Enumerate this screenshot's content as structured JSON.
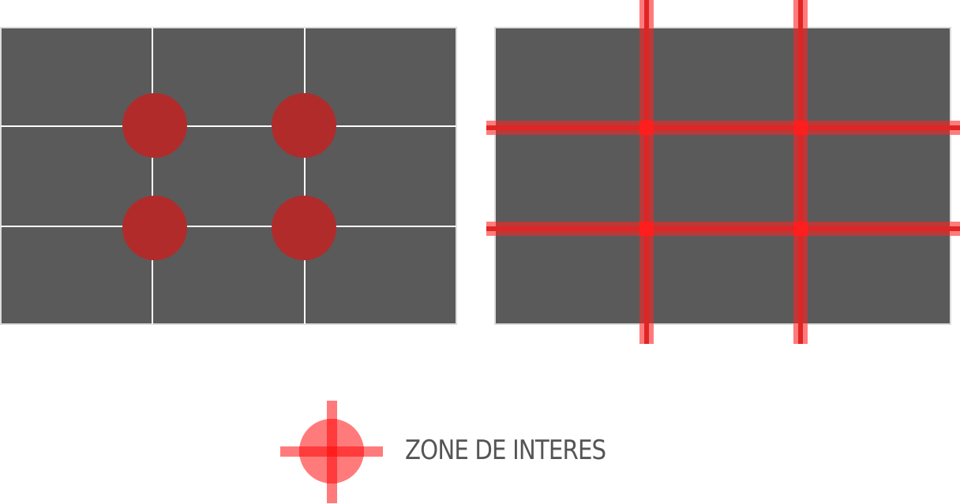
{
  "colors": {
    "panel_fill": "#5a5a5a",
    "panel_border": "#dcdcdc",
    "grid_line": "#ffffff",
    "dot_fill": "#b12b2b",
    "highlight": "#ff3b3b",
    "legend_text": "#555555"
  },
  "left_panel": {
    "grid": "3x3",
    "intersection_markers": 4,
    "marker_shape": "circle"
  },
  "right_panel": {
    "grid": "3x3",
    "line_style": "red-highlighted-thirds"
  },
  "legend": {
    "icon": "crosshair-circle-icon",
    "label": "ZONE DE INTERES"
  }
}
